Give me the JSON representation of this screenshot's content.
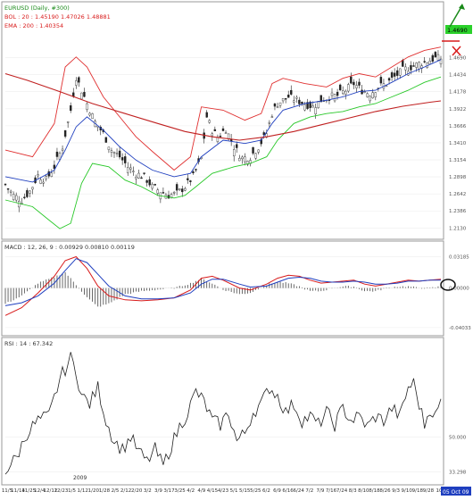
{
  "chart_data": [
    {
      "type": "candlestick",
      "panel": "price",
      "title": "EURUSD (Daily, #300)",
      "indicators_legend": [
        {
          "label": "BOL : 20 : 1.45190  1.47026  1.48881",
          "color": "#d81b1b"
        },
        {
          "label": "EMA : 200 : 1.40354",
          "color": "#d81b1b"
        }
      ],
      "y_ticks": [
        "1.2130",
        "1.2386",
        "1.2642",
        "1.2898",
        "1.3154",
        "1.3410",
        "1.3666",
        "1.3922",
        "1.4178",
        "1.4434",
        "1.4690"
      ],
      "ylim": [
        1.2,
        1.502
      ],
      "last_price_label": "1.4690",
      "x_labels": [
        "11/5",
        "11/14",
        "11/25",
        "12/4",
        "12/12",
        "12/23",
        "1/5",
        "1/12",
        "1/20",
        "1/28",
        "2/5",
        "2/12",
        "2/20",
        "3/2",
        "3/9",
        "3/17",
        "3/25",
        "4/2",
        "4/9",
        "4/15",
        "4/23",
        "5/1",
        "5/15",
        "5/25",
        "6/2",
        "6/9",
        "6/16",
        "6/24",
        "7/2",
        "7/9",
        "7/16",
        "7/24",
        "8/3",
        "8/10",
        "8/18",
        "8/26",
        "9/3",
        "9/10",
        "9/18",
        "9/28",
        "10"
      ],
      "date_label": "05 Oct 09",
      "year_label": "2009",
      "close_path": [
        [
          0,
          1.278
        ],
        [
          3,
          1.262
        ],
        [
          6,
          1.255
        ],
        [
          9,
          1.268
        ],
        [
          12,
          1.292
        ],
        [
          15,
          1.285
        ],
        [
          18,
          1.305
        ],
        [
          21,
          1.335
        ],
        [
          24,
          1.39
        ],
        [
          26,
          1.44
        ],
        [
          28,
          1.42
        ],
        [
          30,
          1.4
        ],
        [
          33,
          1.372
        ],
        [
          36,
          1.355
        ],
        [
          39,
          1.33
        ],
        [
          42,
          1.32
        ],
        [
          45,
          1.305
        ],
        [
          48,
          1.295
        ],
        [
          51,
          1.29
        ],
        [
          54,
          1.275
        ],
        [
          57,
          1.268
        ],
        [
          60,
          1.262
        ],
        [
          63,
          1.265
        ],
        [
          66,
          1.275
        ],
        [
          69,
          1.29
        ],
        [
          72,
          1.318
        ],
        [
          74,
          1.38
        ],
        [
          76,
          1.36
        ],
        [
          78,
          1.35
        ],
        [
          81,
          1.362
        ],
        [
          84,
          1.335
        ],
        [
          87,
          1.318
        ],
        [
          90,
          1.32
        ],
        [
          93,
          1.335
        ],
        [
          96,
          1.355
        ],
        [
          98,
          1.385
        ],
        [
          100,
          1.4
        ],
        [
          102,
          1.405
        ],
        [
          104,
          1.41
        ],
        [
          107,
          1.405
        ],
        [
          110,
          1.4
        ],
        [
          113,
          1.395
        ],
        [
          116,
          1.405
        ],
        [
          119,
          1.41
        ],
        [
          122,
          1.412
        ],
        [
          125,
          1.42
        ],
        [
          128,
          1.43
        ],
        [
          131,
          1.42
        ],
        [
          134,
          1.415
        ],
        [
          137,
          1.425
        ],
        [
          140,
          1.43
        ],
        [
          143,
          1.44
        ],
        [
          146,
          1.45
        ],
        [
          149,
          1.455
        ],
        [
          152,
          1.46
        ],
        [
          155,
          1.464
        ],
        [
          158,
          1.468
        ]
      ],
      "bollinger_upper": [
        [
          0,
          1.33
        ],
        [
          10,
          1.32
        ],
        [
          18,
          1.37
        ],
        [
          22,
          1.455
        ],
        [
          26,
          1.47
        ],
        [
          30,
          1.455
        ],
        [
          36,
          1.41
        ],
        [
          42,
          1.38
        ],
        [
          48,
          1.35
        ],
        [
          54,
          1.328
        ],
        [
          62,
          1.3
        ],
        [
          68,
          1.32
        ],
        [
          72,
          1.395
        ],
        [
          80,
          1.39
        ],
        [
          88,
          1.375
        ],
        [
          94,
          1.385
        ],
        [
          98,
          1.43
        ],
        [
          102,
          1.438
        ],
        [
          110,
          1.43
        ],
        [
          118,
          1.425
        ],
        [
          124,
          1.438
        ],
        [
          130,
          1.445
        ],
        [
          136,
          1.44
        ],
        [
          142,
          1.455
        ],
        [
          148,
          1.47
        ],
        [
          154,
          1.48
        ],
        [
          160,
          1.485
        ]
      ],
      "bollinger_mid": [
        [
          0,
          1.29
        ],
        [
          10,
          1.282
        ],
        [
          18,
          1.3
        ],
        [
          22,
          1.33
        ],
        [
          26,
          1.365
        ],
        [
          30,
          1.38
        ],
        [
          36,
          1.36
        ],
        [
          42,
          1.335
        ],
        [
          48,
          1.315
        ],
        [
          54,
          1.3
        ],
        [
          62,
          1.29
        ],
        [
          68,
          1.295
        ],
        [
          72,
          1.32
        ],
        [
          80,
          1.345
        ],
        [
          88,
          1.34
        ],
        [
          94,
          1.345
        ],
        [
          98,
          1.37
        ],
        [
          102,
          1.39
        ],
        [
          110,
          1.4
        ],
        [
          118,
          1.405
        ],
        [
          124,
          1.41
        ],
        [
          130,
          1.418
        ],
        [
          136,
          1.42
        ],
        [
          142,
          1.432
        ],
        [
          148,
          1.445
        ],
        [
          154,
          1.455
        ],
        [
          160,
          1.466
        ]
      ],
      "bollinger_lower": [
        [
          0,
          1.255
        ],
        [
          10,
          1.245
        ],
        [
          16,
          1.225
        ],
        [
          20,
          1.212
        ],
        [
          24,
          1.22
        ],
        [
          28,
          1.28
        ],
        [
          32,
          1.31
        ],
        [
          38,
          1.305
        ],
        [
          44,
          1.285
        ],
        [
          50,
          1.275
        ],
        [
          56,
          1.262
        ],
        [
          62,
          1.258
        ],
        [
          66,
          1.262
        ],
        [
          70,
          1.275
        ],
        [
          76,
          1.295
        ],
        [
          84,
          1.305
        ],
        [
          90,
          1.31
        ],
        [
          96,
          1.32
        ],
        [
          100,
          1.345
        ],
        [
          106,
          1.37
        ],
        [
          112,
          1.38
        ],
        [
          118,
          1.385
        ],
        [
          124,
          1.388
        ],
        [
          130,
          1.395
        ],
        [
          136,
          1.4
        ],
        [
          142,
          1.41
        ],
        [
          148,
          1.42
        ],
        [
          154,
          1.432
        ],
        [
          160,
          1.44
        ]
      ],
      "ema200": [
        [
          0,
          1.445
        ],
        [
          8,
          1.435
        ],
        [
          20,
          1.418
        ],
        [
          32,
          1.4
        ],
        [
          44,
          1.385
        ],
        [
          56,
          1.37
        ],
        [
          66,
          1.358
        ],
        [
          76,
          1.35
        ],
        [
          86,
          1.345
        ],
        [
          96,
          1.35
        ],
        [
          106,
          1.358
        ],
        [
          116,
          1.368
        ],
        [
          126,
          1.378
        ],
        [
          136,
          1.388
        ],
        [
          146,
          1.396
        ],
        [
          156,
          1.402
        ],
        [
          160,
          1.404
        ]
      ]
    },
    {
      "type": "line",
      "panel": "macd",
      "title": "MACD : 12, 26, 9 : 0.00929  0.00810  0.00119",
      "y_ticks": [
        "0.03185",
        "0.00000",
        "-0.04033"
      ],
      "ylim": [
        -0.045,
        0.037
      ],
      "series": [
        {
          "name": "",
          "color": "#d81b1b",
          "values": [
            [
              0,
              -0.028
            ],
            [
              6,
              -0.02
            ],
            [
              12,
              -0.005
            ],
            [
              18,
              0.012
            ],
            [
              22,
              0.028
            ],
            [
              26,
              0.032
            ],
            [
              30,
              0.02
            ],
            [
              34,
              0.002
            ],
            [
              38,
              -0.008
            ],
            [
              44,
              -0.012
            ],
            [
              50,
              -0.013
            ],
            [
              56,
              -0.012
            ],
            [
              62,
              -0.01
            ],
            [
              68,
              -0.002
            ],
            [
              72,
              0.01
            ],
            [
              76,
              0.012
            ],
            [
              80,
              0.008
            ],
            [
              86,
              0.0
            ],
            [
              90,
              -0.002
            ],
            [
              96,
              0.004
            ],
            [
              100,
              0.01
            ],
            [
              104,
              0.013
            ],
            [
              108,
              0.012
            ],
            [
              112,
              0.008
            ],
            [
              116,
              0.005
            ],
            [
              120,
              0.006
            ],
            [
              124,
              0.007
            ],
            [
              128,
              0.008
            ],
            [
              132,
              0.004
            ],
            [
              136,
              0.002
            ],
            [
              140,
              0.004
            ],
            [
              144,
              0.006
            ],
            [
              148,
              0.008
            ],
            [
              152,
              0.007
            ],
            [
              156,
              0.008
            ],
            [
              160,
              0.009
            ]
          ]
        },
        {
          "name": "",
          "color": "#1f3fbf",
          "values": [
            [
              0,
              -0.018
            ],
            [
              6,
              -0.015
            ],
            [
              12,
              -0.008
            ],
            [
              18,
              0.005
            ],
            [
              22,
              0.018
            ],
            [
              26,
              0.03
            ],
            [
              30,
              0.026
            ],
            [
              34,
              0.014
            ],
            [
              38,
              0.002
            ],
            [
              44,
              -0.008
            ],
            [
              50,
              -0.011
            ],
            [
              56,
              -0.011
            ],
            [
              62,
              -0.01
            ],
            [
              68,
              -0.005
            ],
            [
              72,
              0.004
            ],
            [
              76,
              0.009
            ],
            [
              80,
              0.009
            ],
            [
              86,
              0.004
            ],
            [
              90,
              0.001
            ],
            [
              96,
              0.002
            ],
            [
              100,
              0.006
            ],
            [
              104,
              0.01
            ],
            [
              108,
              0.011
            ],
            [
              112,
              0.01
            ],
            [
              116,
              0.007
            ],
            [
              120,
              0.006
            ],
            [
              124,
              0.006
            ],
            [
              128,
              0.007
            ],
            [
              132,
              0.006
            ],
            [
              136,
              0.004
            ],
            [
              140,
              0.004
            ],
            [
              144,
              0.005
            ],
            [
              148,
              0.007
            ],
            [
              152,
              0.007
            ],
            [
              156,
              0.008
            ],
            [
              160,
              0.008
            ]
          ]
        }
      ]
    },
    {
      "type": "line",
      "panel": "rsi",
      "title": "RSI : 14 : 67.342",
      "y_ticks": [
        "50.000",
        "33.298"
      ],
      "ylim": [
        30,
        92
      ],
      "series": [
        {
          "name": "",
          "color": "#222222",
          "values": [
            [
              0,
              34
            ],
            [
              4,
              40
            ],
            [
              8,
              52
            ],
            [
              12,
              58
            ],
            [
              16,
              60
            ],
            [
              20,
              78
            ],
            [
              24,
              88
            ],
            [
              26,
              82
            ],
            [
              28,
              70
            ],
            [
              31,
              66
            ],
            [
              34,
              74
            ],
            [
              37,
              58
            ],
            [
              40,
              48
            ],
            [
              43,
              44
            ],
            [
              46,
              50
            ],
            [
              49,
              43
            ],
            [
              52,
              38
            ],
            [
              55,
              44
            ],
            [
              58,
              36
            ],
            [
              61,
              46
            ],
            [
              64,
              55
            ],
            [
              67,
              62
            ],
            [
              70,
              72
            ],
            [
              73,
              67
            ],
            [
              76,
              58
            ],
            [
              79,
              56
            ],
            [
              82,
              62
            ],
            [
              85,
              48
            ],
            [
              88,
              52
            ],
            [
              91,
              62
            ],
            [
              94,
              66
            ],
            [
              97,
              74
            ],
            [
              100,
              70
            ],
            [
              103,
              62
            ],
            [
              106,
              66
            ],
            [
              109,
              58
            ],
            [
              112,
              60
            ],
            [
              115,
              56
            ],
            [
              118,
              62
            ],
            [
              121,
              56
            ],
            [
              124,
              64
            ],
            [
              127,
              58
            ],
            [
              130,
              60
            ],
            [
              133,
              55
            ],
            [
              136,
              60
            ],
            [
              139,
              58
            ],
            [
              142,
              64
            ],
            [
              145,
              60
            ],
            [
              148,
              74
            ],
            [
              150,
              76
            ],
            [
              152,
              66
            ],
            [
              154,
              56
            ],
            [
              156,
              64
            ],
            [
              158,
              60
            ],
            [
              160,
              67
            ]
          ]
        }
      ]
    }
  ]
}
